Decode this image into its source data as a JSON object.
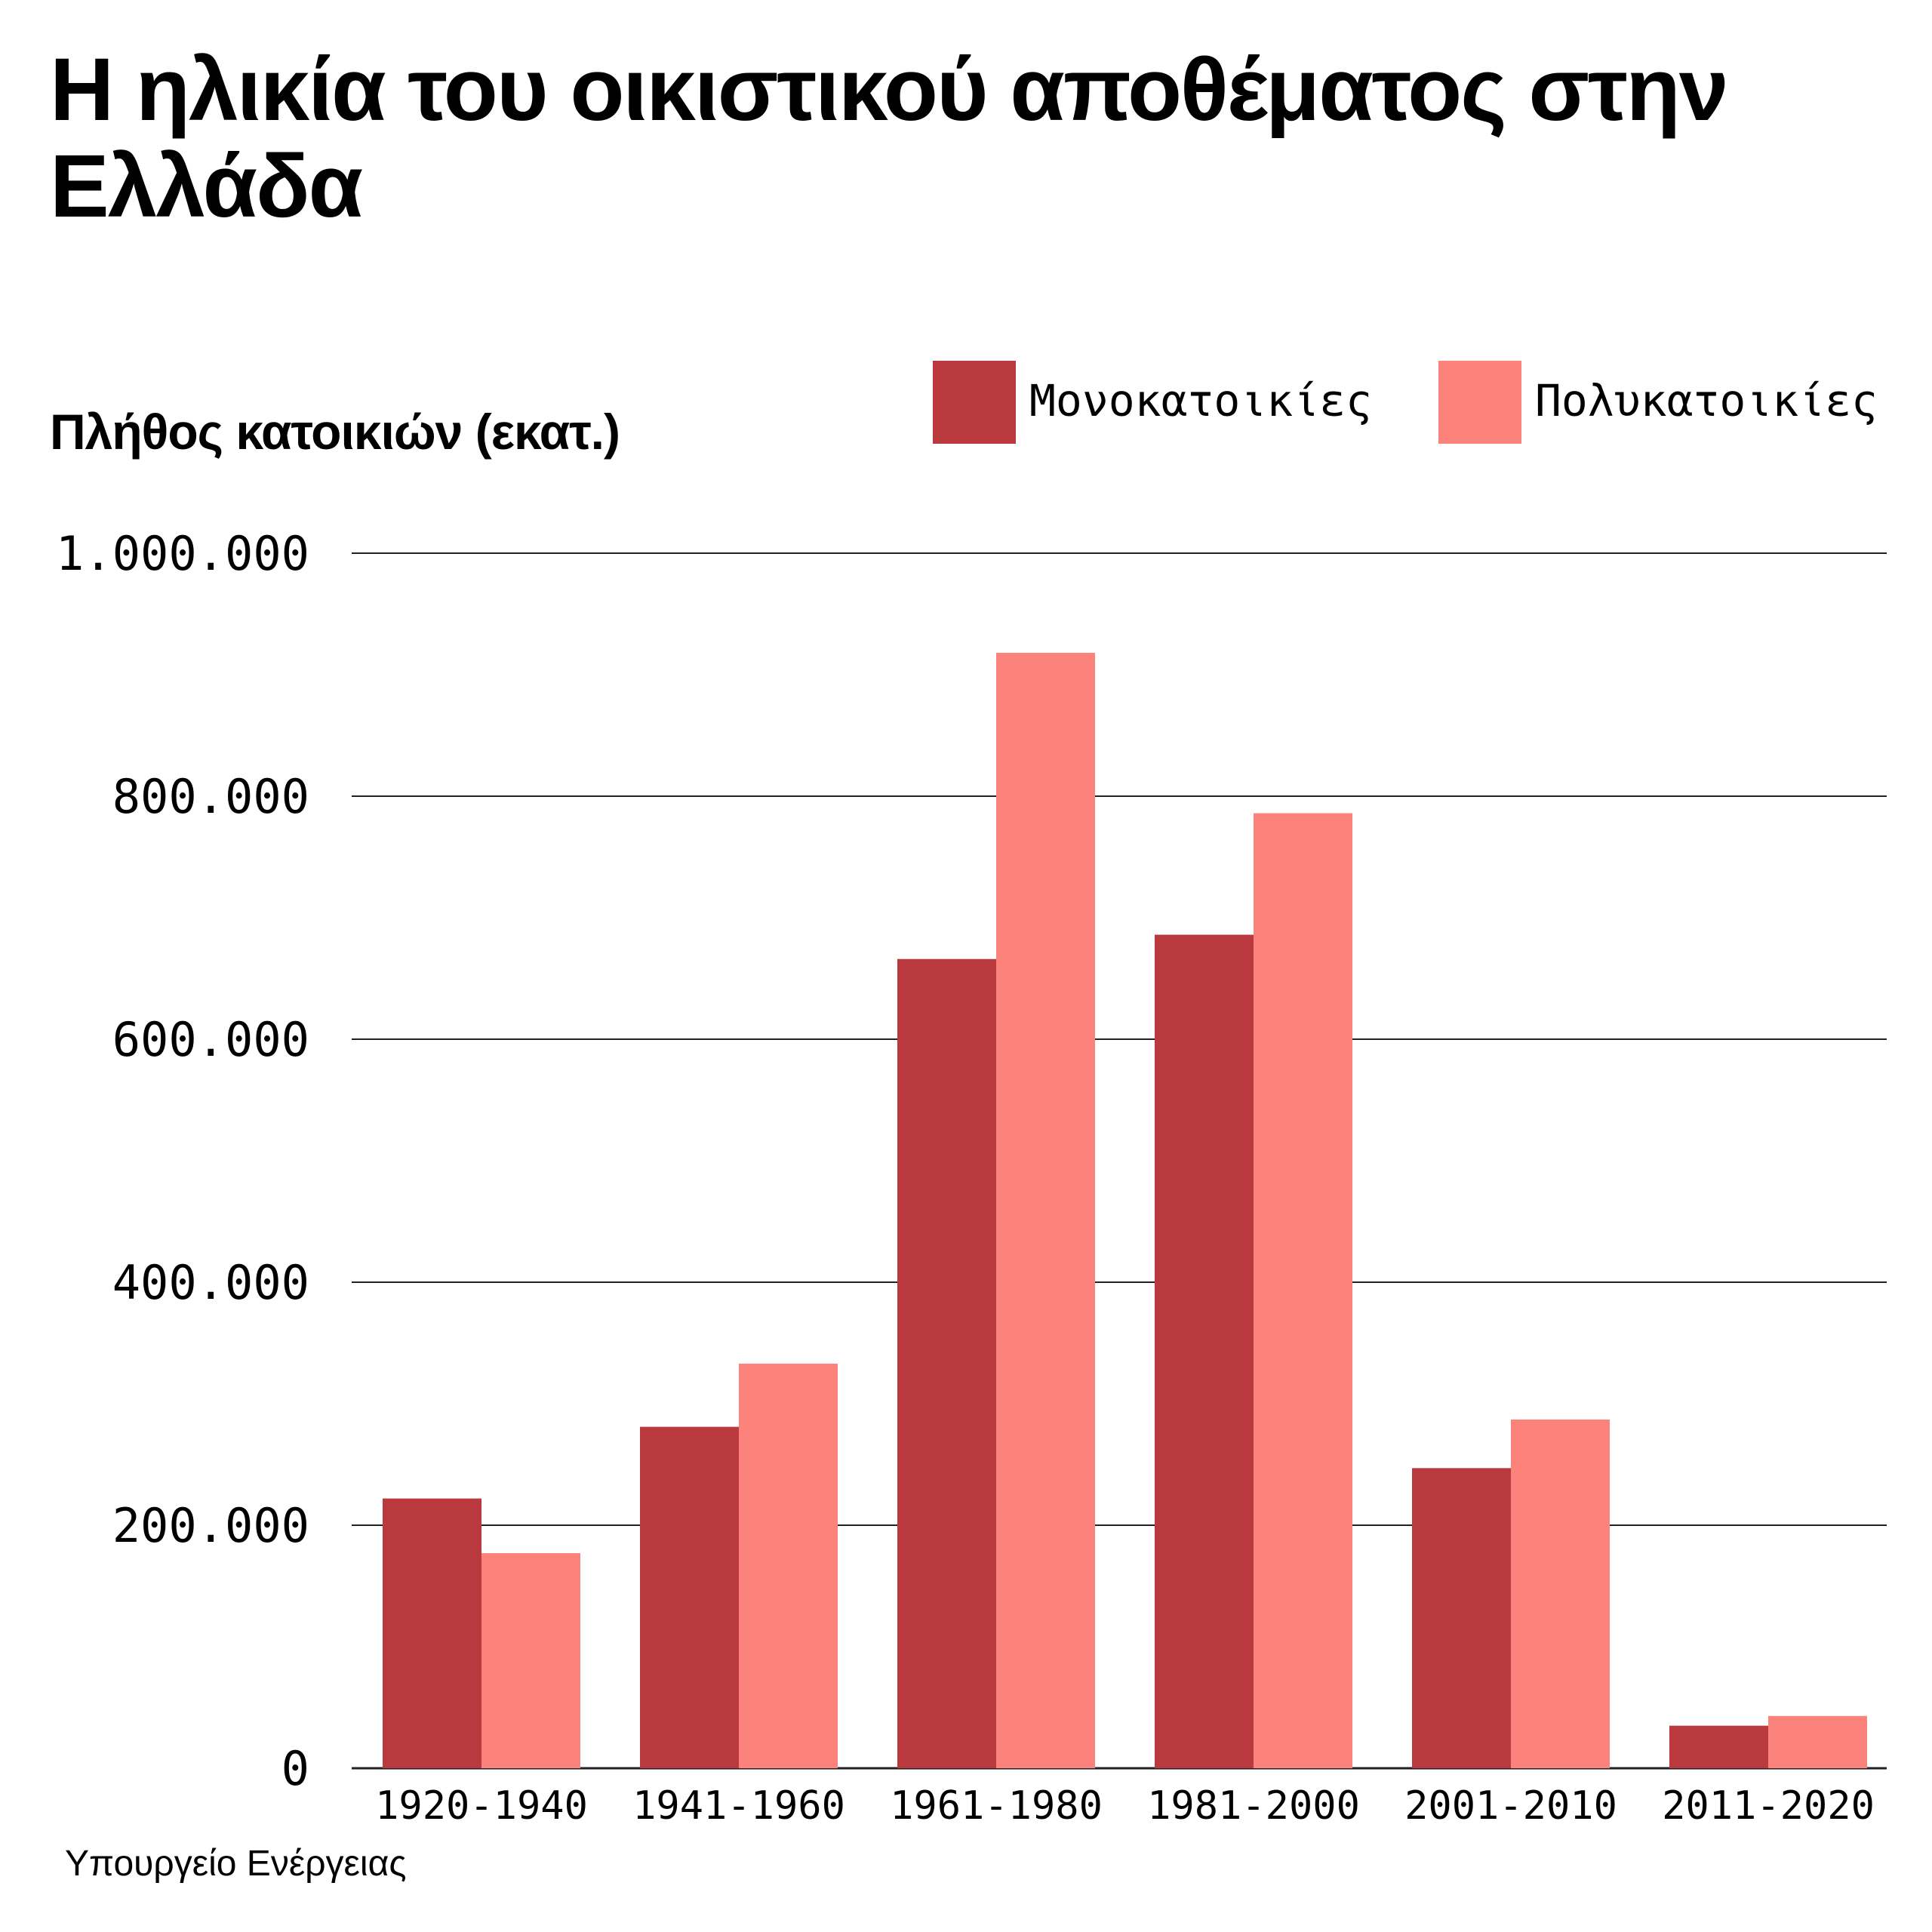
{
  "title": "Η ηλικία του οικιστικού αποθέματος στην Ελλάδα",
  "source": "Υπουργείο Ενέργειας",
  "chart_data": {
    "type": "bar",
    "title": "Η ηλικία του οικιστικού αποθέματος στην Ελλάδα",
    "xlabel": "",
    "ylabel": "Πλήθος κατοικιών (εκατ.)",
    "ylim": [
      0,
      1000000
    ],
    "grid": true,
    "legend_position": "top-right",
    "y_ticks": [
      {
        "value": 0,
        "label": "0"
      },
      {
        "value": 200000,
        "label": "200.000"
      },
      {
        "value": 400000,
        "label": "400.000"
      },
      {
        "value": 600000,
        "label": "600.000"
      },
      {
        "value": 800000,
        "label": "800.000"
      },
      {
        "value": 1000000,
        "label": "1.000.000"
      }
    ],
    "categories": [
      "1920-1940",
      "1941-1960",
      "1961-1980",
      "1981-2000",
      "2001-2010",
      "2011-2020"
    ],
    "series": [
      {
        "name": "Μονοκατοικίες",
        "color": "#B9393E",
        "values": [
          222000,
          281000,
          666000,
          686000,
          247000,
          35000
        ]
      },
      {
        "name": "Πολυκατοικίες",
        "color": "#FC837C",
        "values": [
          177000,
          333000,
          918000,
          786000,
          287000,
          43000
        ]
      }
    ]
  }
}
